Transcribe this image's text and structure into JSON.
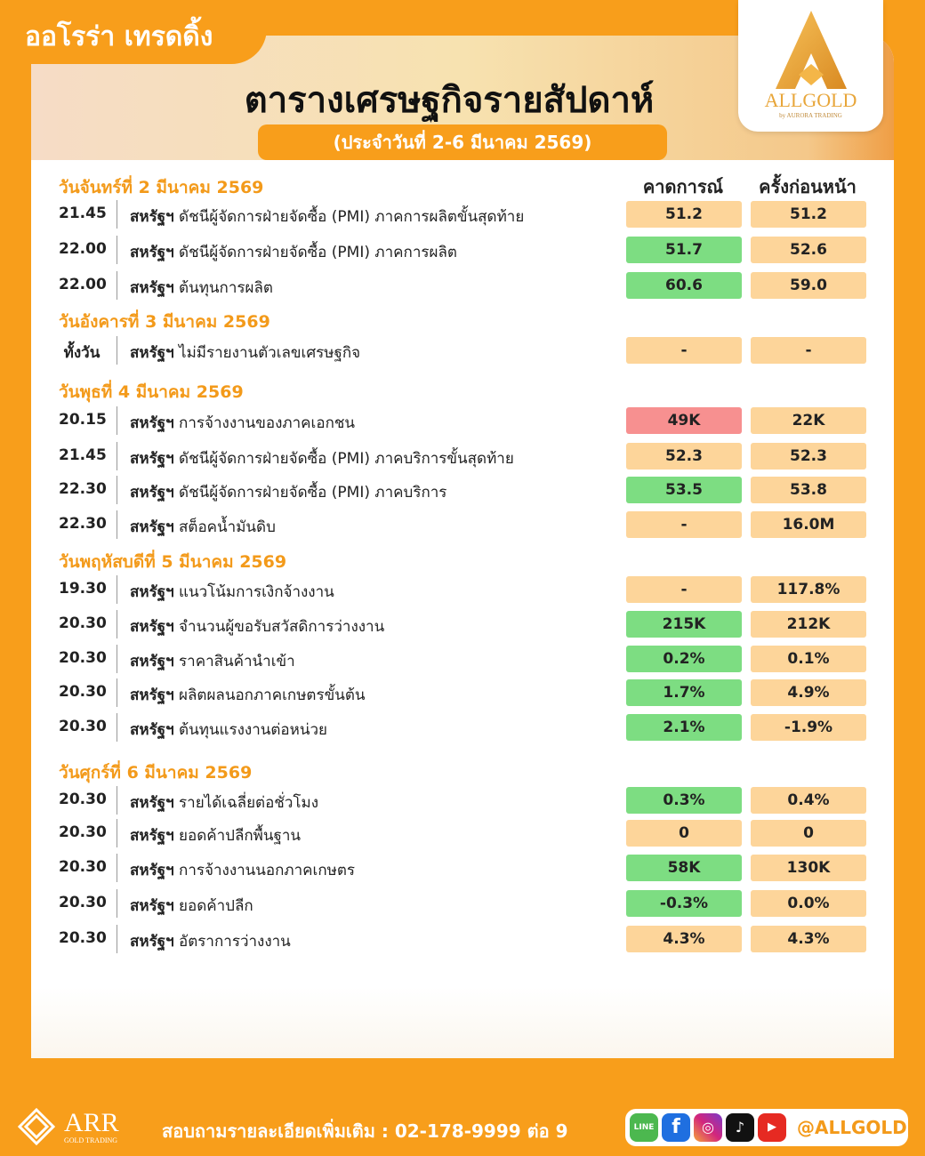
{
  "brand": "ออโรร่า เทรดดิ้ง",
  "title": "ตารางเศรษฐกิจรายสัปดาห์",
  "subtitle": "(ประจำวันที่ 2-6 มีนาคม 2569)",
  "logo": {
    "name": "ALLGOLD",
    "tagline": "by AURORA TRADING"
  },
  "columns": {
    "forecast": "คาดการณ์",
    "previous": "ครั้งก่อนหน้า"
  },
  "colors": {
    "neutral": "#fdd59a",
    "better": "#7ddd82",
    "worse": "#f79090",
    "accent": "#f89e1b"
  },
  "days": [
    {
      "label": "วันจันทร์ที่ 2 มีนาคม 2569",
      "rows": [
        {
          "time": "21.45",
          "country": "สหรัฐฯ",
          "event": "ดัชนีผู้จัดการฝ่ายจัดซื้อ (PMI) ภาคการผลิตขั้นสุดท้าย",
          "forecast": "51.2",
          "previous": "51.2",
          "status": "neutral"
        },
        {
          "time": "22.00",
          "country": "สหรัฐฯ",
          "event": "ดัชนีผู้จัดการฝ่ายจัดซื้อ (PMI) ภาคการผลิต",
          "forecast": "51.7",
          "previous": "52.6",
          "status": "better"
        },
        {
          "time": "22.00",
          "country": "สหรัฐฯ",
          "event": "ต้นทุนการผลิต",
          "forecast": "60.6",
          "previous": "59.0",
          "status": "better"
        }
      ]
    },
    {
      "label": "วันอังคารที่ 3 มีนาคม 2569",
      "rows": [
        {
          "time": "ทั้งวัน",
          "country": "สหรัฐฯ",
          "event": "ไม่มีรายงานตัวเลขเศรษฐกิจ",
          "forecast": "-",
          "previous": "-",
          "status": "neutral"
        }
      ]
    },
    {
      "label": "วันพุธที่ 4 มีนาคม 2569",
      "rows": [
        {
          "time": "20.15",
          "country": "สหรัฐฯ",
          "event": "การจ้างงานของภาคเอกชน",
          "forecast": "49K",
          "previous": "22K",
          "status": "worse"
        },
        {
          "time": "21.45",
          "country": "สหรัฐฯ",
          "event": "ดัชนีผู้จัดการฝ่ายจัดซื้อ (PMI) ภาคบริการขั้นสุดท้าย",
          "forecast": "52.3",
          "previous": "52.3",
          "status": "neutral"
        },
        {
          "time": "22.30",
          "country": "สหรัฐฯ",
          "event": "ดัชนีผู้จัดการฝ่ายจัดซื้อ (PMI) ภาคบริการ",
          "forecast": "53.5",
          "previous": "53.8",
          "status": "better"
        },
        {
          "time": "22.30",
          "country": "สหรัฐฯ",
          "event": "สต็อคน้ำมันดิบ",
          "forecast": "-",
          "previous": "16.0M",
          "status": "neutral"
        }
      ]
    },
    {
      "label": "วันพฤหัสบดีที่ 5 มีนาคม 2569",
      "rows": [
        {
          "time": "19.30",
          "country": "สหรัฐฯ",
          "event": "แนวโน้มการเงิกจ้างงาน",
          "forecast": "-",
          "previous": "117.8%",
          "status": "neutral"
        },
        {
          "time": "20.30",
          "country": "สหรัฐฯ",
          "event": "จำนวนผู้ขอรับสวัสดิการว่างงาน",
          "forecast": "215K",
          "previous": "212K",
          "status": "better"
        },
        {
          "time": "20.30",
          "country": "สหรัฐฯ",
          "event": "ราคาสินค้านำเข้า",
          "forecast": "0.2%",
          "previous": "0.1%",
          "status": "better"
        },
        {
          "time": "20.30",
          "country": "สหรัฐฯ",
          "event": "ผลิตผลนอกภาคเกษตรขั้นต้น",
          "forecast": "1.7%",
          "previous": "4.9%",
          "status": "better"
        },
        {
          "time": "20.30",
          "country": "สหรัฐฯ",
          "event": "ต้นทุนแรงงานต่อหน่วย",
          "forecast": "2.1%",
          "previous": "-1.9%",
          "status": "better"
        }
      ]
    },
    {
      "label": "วันศุกร์ที่ 6 มีนาคม 2569",
      "rows": [
        {
          "time": "20.30",
          "country": "สหรัฐฯ",
          "event": "รายได้เฉลี่ยต่อชั่วโมง",
          "forecast": "0.3%",
          "previous": "0.4%",
          "status": "better"
        },
        {
          "time": "20.30",
          "country": "สหรัฐฯ",
          "event": "ยอดค้าปลีกพื้นฐาน",
          "forecast": "0",
          "previous": "0",
          "status": "neutral"
        },
        {
          "time": "20.30",
          "country": "สหรัฐฯ",
          "event": "การจ้างงานนอกภาคเกษตร",
          "forecast": "58K",
          "previous": "130K",
          "status": "better"
        },
        {
          "time": "20.30",
          "country": "สหรัฐฯ",
          "event": "ยอดค้าปลีก",
          "forecast": "-0.3%",
          "previous": "0.0%",
          "status": "better"
        },
        {
          "time": "20.30",
          "country": "สหรัฐฯ",
          "event": "อัตราการว่างงาน",
          "forecast": "4.3%",
          "previous": "4.3%",
          "status": "neutral"
        }
      ]
    }
  ],
  "footer": {
    "arr_name": "ARR",
    "arr_tagline": "GOLD TRADING",
    "contact": "สอบถามรายละเอียดเพิ่มเติม : 02-178-9999 ต่อ 9",
    "social_icons": [
      "line-icon",
      "facebook-icon",
      "instagram-icon",
      "tiktok-icon",
      "youtube-icon"
    ],
    "handle": "@ALLGOLD"
  }
}
